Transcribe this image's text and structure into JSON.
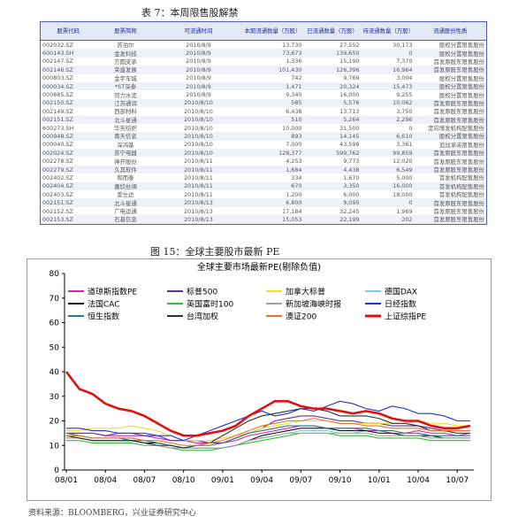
{
  "table": {
    "title": "表 7：本周限售股解禁",
    "header": [
      "股票代码",
      "股票简称",
      "可流通时间",
      "本期流通数量（万股）",
      "已流通数量（万股）",
      "待流通数量（万股）",
      "流通股份性质"
    ],
    "rows": [
      [
        "002032.SZ",
        "苏泊尔",
        "2010/8/9",
        "13,730",
        "27,552",
        "30,173",
        "股权分置限售股份"
      ],
      [
        "600143.SH",
        "金发科技",
        "2010/8/9",
        "73,673",
        "139,650",
        "0",
        "股权分置限售股份"
      ],
      [
        "002147.SZ",
        "方圆支承",
        "2010/8/9",
        "1,336",
        "15,190",
        "7,370",
        "首发原股东限售股份"
      ],
      [
        "002146.SZ",
        "荣盛发展",
        "2010/8/9",
        "101,430",
        "126,396",
        "16,964",
        "首发原股东限售股份"
      ],
      [
        "000803.SZ",
        "金宇车城",
        "2010/8/9",
        "742",
        "9,769",
        "3,004",
        "股权分置限售股份"
      ],
      [
        "000034.SZ",
        "*ST深泰",
        "2010/8/9",
        "1,471",
        "20,324",
        "15,473",
        "股权分置限售股份"
      ],
      [
        "000885.SZ",
        "同力水泥",
        "2010/8/9",
        "9,340",
        "16,000",
        "9,255",
        "股权分置限售股份"
      ],
      [
        "002150.SZ",
        "江苏通润",
        "2010/8/10",
        "585",
        "5,576",
        "10,062",
        "首发原股东限售股份"
      ],
      [
        "002149.SZ",
        "西部材料",
        "2010/8/10",
        "6,438",
        "13,713",
        "3,750",
        "首发原股东限售股份"
      ],
      [
        "002151.SZ",
        "北斗星通",
        "2010/8/10",
        "510",
        "5,264",
        "2,296",
        "首发原股东限售股份"
      ],
      [
        "600273.SH",
        "华芳纺织",
        "2010/8/10",
        "10,000",
        "31,500",
        "0",
        "定向增发机构配售股份"
      ],
      [
        "000948.SZ",
        "南天信息",
        "2010/8/10",
        "893",
        "14,145",
        "6,610",
        "股权分置限售股份"
      ],
      [
        "000040.SZ",
        "深鸿基",
        "2010/8/10",
        "7,000",
        "43,598",
        "3,361",
        "追加承诺限售股份"
      ],
      [
        "002024.SZ",
        "苏宁电器",
        "2010/8/10",
        "128,377",
        "599,762",
        "99,859",
        "首发原股东限售股份"
      ],
      [
        "002278.SZ",
        "神开股份",
        "2010/8/11",
        "4,253",
        "9,773",
        "12,020",
        "首发原股东限售股份"
      ],
      [
        "002279.SZ",
        "久其软件",
        "2010/8/11",
        "1,684",
        "4,438",
        "6,549",
        "首发原股东限售股份"
      ],
      [
        "002402.SZ",
        "和而泰",
        "2010/8/11",
        "334",
        "1,670",
        "5,000",
        "首发机构配售股份"
      ],
      [
        "002404.SZ",
        "嘉欣丝绸",
        "2010/8/11",
        "670",
        "3,350",
        "16,000",
        "首发机构配售股份"
      ],
      [
        "002403.SZ",
        "爱仕达",
        "2010/8/11",
        "1,200",
        "6,000",
        "18,000",
        "首发机构配售股份"
      ],
      [
        "002151.SZ",
        "北斗星通",
        "2010/8/13",
        "6,800",
        "9,095",
        "0",
        "首发原股东限售股份"
      ],
      [
        "002152.SZ",
        "广电运通",
        "2010/8/13",
        "17,184",
        "32,245",
        "1,969",
        "首发原股东限售股份"
      ],
      [
        "002153.SZ",
        "石基信息",
        "2010/8/13",
        "15,053",
        "22,199",
        "202",
        "首发原股东限售股份"
      ]
    ]
  },
  "figure_title": "图 15：全球主要股市最新 PE",
  "chart_data": {
    "type": "line",
    "title": "全球主要市场最新PE(剔除负值)",
    "categories": [
      "08/01",
      null,
      null,
      "08/04",
      null,
      null,
      "08/07",
      null,
      null,
      "08/10",
      null,
      null,
      "09/01",
      null,
      null,
      "09/04",
      null,
      null,
      "09/07",
      null,
      null,
      "09/10",
      null,
      null,
      "10/01",
      null,
      null,
      "10/04",
      null,
      null,
      "10/07",
      null
    ],
    "ylim": [
      0,
      80
    ],
    "yticks": [
      0,
      10,
      20,
      30,
      40,
      50,
      60,
      70,
      80
    ],
    "series": [
      {
        "name": "道琼斯指数PE",
        "color": "#e020c0",
        "values": [
          15,
          15,
          15,
          14,
          14,
          14,
          14,
          13,
          12,
          12,
          11,
          11,
          11,
          12,
          14,
          15,
          16,
          17,
          18,
          18,
          17,
          17,
          17,
          16,
          16,
          15,
          15,
          16,
          15,
          15,
          14,
          15
        ]
      },
      {
        "name": "标普500",
        "color": "#6030a0",
        "values": [
          15,
          15,
          15,
          14,
          15,
          15,
          14,
          14,
          12,
          12,
          12,
          11,
          11,
          13,
          15,
          17,
          20,
          21,
          22,
          22,
          21,
          20,
          20,
          19,
          19,
          18,
          18,
          18,
          17,
          16,
          16,
          16
        ]
      },
      {
        "name": "加拿大标普",
        "color": "#f0e020",
        "values": [
          16,
          16,
          17,
          17,
          17,
          18,
          17,
          16,
          14,
          12,
          12,
          12,
          13,
          14,
          15,
          17,
          18,
          19,
          20,
          20,
          20,
          19,
          19,
          19,
          19,
          19,
          19,
          20,
          19,
          19,
          18,
          18
        ]
      },
      {
        "name": "德国DAX",
        "color": "#80c8e8",
        "values": [
          14,
          14,
          13,
          13,
          13,
          13,
          12,
          11,
          10,
          9,
          9,
          9,
          9,
          10,
          12,
          13,
          14,
          15,
          16,
          16,
          16,
          15,
          15,
          16,
          15,
          15,
          14,
          14,
          13,
          13,
          13,
          13
        ]
      },
      {
        "name": "法国CAC",
        "color": "#111111",
        "values": [
          13,
          13,
          12,
          12,
          12,
          12,
          11,
          11,
          10,
          9,
          9,
          9,
          9,
          10,
          12,
          14,
          15,
          16,
          17,
          17,
          17,
          16,
          16,
          16,
          15,
          15,
          14,
          14,
          14,
          13,
          13,
          13
        ]
      },
      {
        "name": "英国富时100",
        "color": "#30c030",
        "values": [
          12,
          12,
          11,
          11,
          11,
          11,
          10,
          10,
          9,
          8,
          8,
          8,
          9,
          10,
          11,
          12,
          13,
          14,
          15,
          15,
          15,
          14,
          14,
          14,
          13,
          13,
          13,
          13,
          12,
          12,
          12,
          12
        ]
      },
      {
        "name": "新加坡海峡时报",
        "color": "#a0a0a0",
        "values": [
          13,
          13,
          12,
          12,
          12,
          12,
          11,
          10,
          9,
          9,
          9,
          9,
          9,
          10,
          12,
          13,
          14,
          15,
          15,
          15,
          15,
          15,
          15,
          15,
          14,
          14,
          14,
          14,
          13,
          13,
          13,
          13
        ]
      },
      {
        "name": "日经指数",
        "color": "#2030e0",
        "values": [
          17,
          17,
          16,
          16,
          15,
          15,
          15,
          14,
          14,
          12,
          14,
          16,
          18,
          20,
          22,
          24,
          22,
          23,
          25,
          24,
          26,
          28,
          27,
          25,
          24,
          26,
          25,
          23,
          23,
          22,
          20,
          20
        ]
      },
      {
        "name": "恒生指数",
        "color": "#208080",
        "values": [
          15,
          14,
          13,
          13,
          13,
          12,
          12,
          11,
          10,
          9,
          10,
          10,
          11,
          13,
          15,
          16,
          17,
          18,
          18,
          18,
          17,
          17,
          17,
          17,
          16,
          16,
          15,
          15,
          14,
          14,
          14,
          14
        ]
      },
      {
        "name": "台湾加权",
        "color": "#303030",
        "values": [
          14,
          13,
          12,
          12,
          12,
          12,
          11,
          10,
          10,
          9,
          10,
          11,
          14,
          17,
          20,
          22,
          23,
          24,
          25,
          25,
          24,
          22,
          22,
          22,
          21,
          19,
          19,
          18,
          16,
          16,
          15,
          15
        ]
      },
      {
        "name": "澳证200",
        "color": "#f07020",
        "values": [
          14,
          14,
          13,
          13,
          13,
          13,
          12,
          12,
          11,
          10,
          10,
          11,
          12,
          14,
          16,
          18,
          19,
          20,
          20,
          21,
          20,
          19,
          19,
          18,
          18,
          17,
          17,
          17,
          16,
          16,
          16,
          16
        ]
      },
      {
        "name": "上证综指PE",
        "color": "#e01010",
        "values": [
          40,
          33,
          31,
          27,
          25,
          24,
          22,
          19,
          16,
          14,
          14,
          15,
          16,
          18,
          22,
          25,
          28,
          28,
          26,
          25,
          25,
          24,
          23,
          24,
          23,
          21,
          20,
          20,
          18,
          17,
          17,
          18
        ]
      }
    ]
  },
  "source": "资料来源：BLOOMBERG，兴业证券研究中心"
}
